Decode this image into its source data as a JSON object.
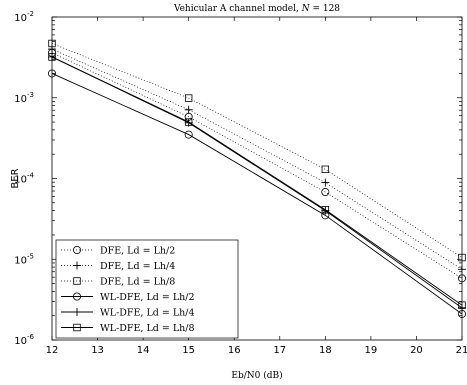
{
  "chart_data": {
    "type": "line",
    "title": "Vehicular A channel model, N = 128",
    "xlabel": "Eb/N0 (dB)",
    "ylabel": "BER",
    "xlim": [
      12,
      21
    ],
    "ylim": [
      1e-06,
      0.01
    ],
    "yscale": "log",
    "grid": false,
    "legend_position": "lower-left",
    "x_ticks": [
      "12",
      "13",
      "14",
      "15",
      "16",
      "17",
      "18",
      "19",
      "20",
      "21"
    ],
    "y_ticks": [
      {
        "value": 1e-06,
        "mantissa": "10",
        "exp": "-6"
      },
      {
        "value": 1e-05,
        "mantissa": "10",
        "exp": "-5"
      },
      {
        "value": 0.0001,
        "mantissa": "10",
        "exp": "-4"
      },
      {
        "value": 0.001,
        "mantissa": "10",
        "exp": "-3"
      },
      {
        "value": 0.01,
        "mantissa": "10",
        "exp": "-2"
      }
    ],
    "series": [
      {
        "name": "DFE, Ld = Lh/2",
        "line": "dotted",
        "marker": "circle",
        "x": [
          12,
          15,
          18,
          21
        ],
        "y": [
          0.0036,
          0.00058,
          6.8e-05,
          5.8e-06
        ]
      },
      {
        "name": "DFE, Ld = Lh/4",
        "line": "dotted",
        "marker": "plus",
        "x": [
          12,
          15,
          18,
          21
        ],
        "y": [
          0.004,
          0.00071,
          8.9e-05,
          7.5e-06
        ]
      },
      {
        "name": "DFE, Ld = Lh/8",
        "line": "dotted",
        "marker": "square",
        "x": [
          12,
          15,
          18,
          21
        ],
        "y": [
          0.0047,
          0.00099,
          0.00013,
          1.05e-05
        ]
      },
      {
        "name": "WL-DFE, Ld = Lh/2",
        "line": "solid",
        "marker": "circle",
        "x": [
          12,
          15,
          18,
          21
        ],
        "y": [
          0.002,
          0.00035,
          3.5e-05,
          2.1e-06
        ]
      },
      {
        "name": "WL-DFE, Ld = Lh/4",
        "line": "solid",
        "marker": "plus",
        "x": [
          12,
          15,
          18,
          21
        ],
        "y": [
          0.0032,
          0.00049,
          4e-05,
          2.5e-06
        ]
      },
      {
        "name": "WL-DFE, Ld = Lh/8",
        "line": "solid",
        "marker": "square",
        "x": [
          12,
          15,
          18,
          21
        ],
        "y": [
          0.0032,
          0.0005,
          4.1e-05,
          2.7e-06
        ]
      }
    ]
  }
}
